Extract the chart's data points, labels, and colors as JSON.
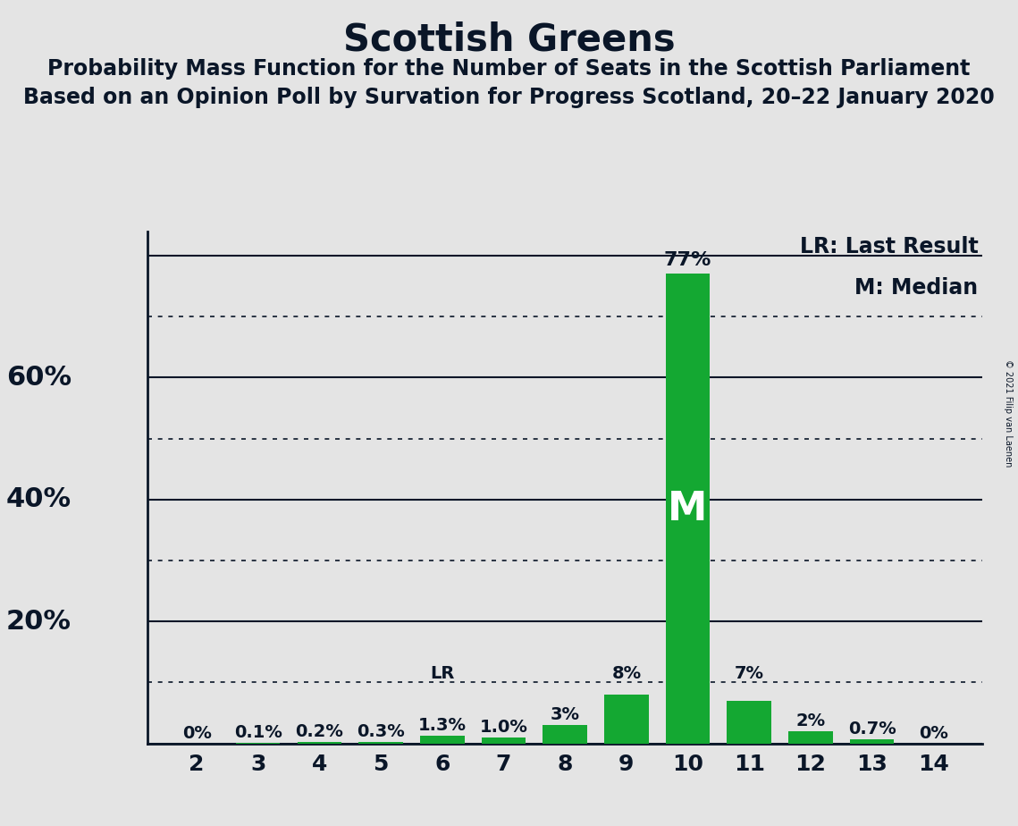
{
  "title": "Scottish Greens",
  "subtitle1": "Probability Mass Function for the Number of Seats in the Scottish Parliament",
  "subtitle2": "Based on an Opinion Poll by Survation for Progress Scotland, 20–22 January 2020",
  "copyright": "© 2021 Filip van Laenen",
  "seats": [
    2,
    3,
    4,
    5,
    6,
    7,
    8,
    9,
    10,
    11,
    12,
    13,
    14
  ],
  "probabilities": [
    0.0,
    0.001,
    0.002,
    0.003,
    0.013,
    0.01,
    0.03,
    0.08,
    0.77,
    0.07,
    0.02,
    0.007,
    0.0
  ],
  "bar_labels": [
    "0%",
    "0.1%",
    "0.2%",
    "0.3%",
    "1.3%",
    "1.0%",
    "3%",
    "8%",
    "77%",
    "7%",
    "2%",
    "0.7%",
    "0%"
  ],
  "bar_color": "#14A832",
  "last_result_seat": 6,
  "median_seat": 10,
  "background_color": "#E4E4E4",
  "ysolid_ticks": [
    0.0,
    0.2,
    0.4,
    0.6,
    0.8
  ],
  "ydotted_ticks": [
    0.1,
    0.3,
    0.5,
    0.7
  ],
  "ylim": [
    0,
    0.84
  ],
  "title_fontsize": 30,
  "subtitle_fontsize": 17,
  "tick_fontsize": 18,
  "legend_fontsize": 17,
  "bar_label_fontsize": 14,
  "ylabel_fontsize": 22,
  "text_color": "#0A1628"
}
